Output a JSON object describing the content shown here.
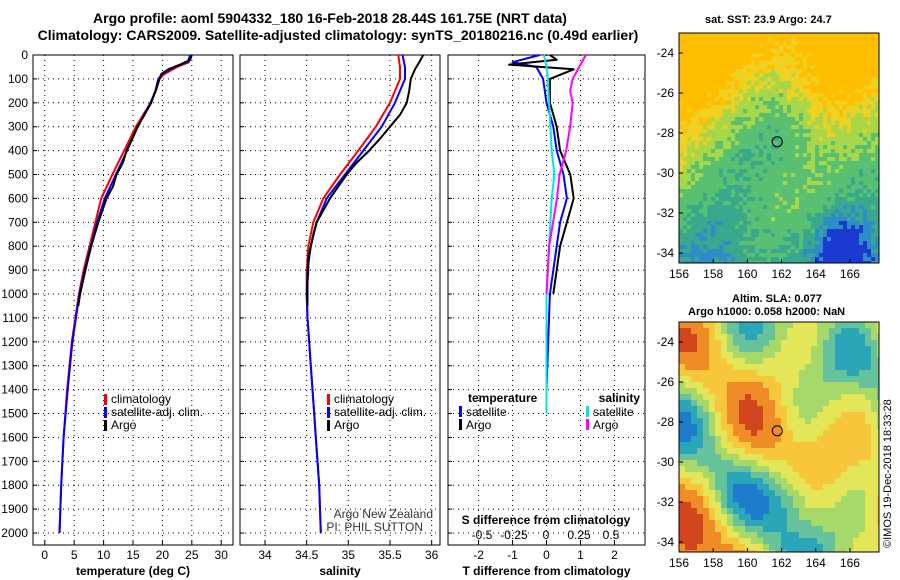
{
  "header": {
    "title_line1": "Argo profile: aoml 5904332_180 16-Feb-2018 28.44S 161.75E (NRT data)",
    "title_line2": "Climatology: CARS2009. Satellite-adjusted climatology: synTS_20180216.nc (0.49d earlier)"
  },
  "colors": {
    "climatology": "#ff0000",
    "satellite_adj": "#0000ff",
    "argo": "#000000",
    "sat_cyan": "#00e5e5",
    "argo_magenta": "#ff00ff"
  },
  "chart_data": [
    {
      "type": "line",
      "name": "temperature-profile",
      "xlabel": "temperature (deg C)",
      "ylabel": "",
      "xlim": [
        -2,
        32
      ],
      "ylim": [
        2050,
        0
      ],
      "xticks": [
        "0",
        "5",
        "10",
        "15",
        "20",
        "25",
        "30"
      ],
      "yticks": [
        "0",
        "100",
        "200",
        "300",
        "400",
        "500",
        "600",
        "700",
        "800",
        "900",
        "1000",
        "1100",
        "1200",
        "1300",
        "1400",
        "1500",
        "1600",
        "1700",
        "1800",
        "1900",
        "2000"
      ],
      "legend": [
        "climatology",
        "satellite-adj. clim.",
        "Argo"
      ],
      "series": [
        {
          "name": "climatology",
          "pressure": [
            0,
            30,
            50,
            80,
            100,
            150,
            200,
            300,
            400,
            500,
            600,
            700,
            800,
            900,
            1000,
            1200,
            1400,
            1600,
            1800,
            2000
          ],
          "values": [
            24.9,
            24.5,
            22.5,
            20.3,
            19.5,
            18.9,
            18.0,
            15.5,
            13.5,
            11.5,
            9.6,
            8.6,
            7.6,
            6.6,
            5.8,
            4.6,
            3.8,
            3.2,
            2.8,
            2.5
          ]
        },
        {
          "name": "satellite-adj. clim.",
          "pressure": [
            0,
            30,
            50,
            80,
            100,
            150,
            200,
            300,
            400,
            500,
            600,
            700,
            800,
            900,
            1000,
            1200,
            1400,
            1600,
            1800,
            2000
          ],
          "values": [
            24.7,
            24.3,
            22.0,
            20.0,
            19.3,
            18.8,
            18.0,
            15.8,
            14.0,
            12.1,
            10.2,
            8.9,
            7.8,
            6.8,
            5.9,
            4.7,
            3.9,
            3.2,
            2.8,
            2.5
          ]
        },
        {
          "name": "Argo",
          "pressure": [
            0,
            20,
            40,
            60,
            80,
            100,
            150,
            200,
            300,
            400,
            450,
            500,
            550,
            600,
            700,
            800,
            900,
            1000,
            1050
          ],
          "values": [
            25.0,
            24.7,
            23.0,
            21.0,
            19.8,
            19.5,
            18.8,
            18.1,
            15.8,
            13.9,
            13.3,
            12.2,
            11.6,
            10.5,
            9.1,
            7.9,
            6.9,
            6.0,
            5.7
          ]
        }
      ]
    },
    {
      "type": "line",
      "name": "salinity-profile",
      "xlabel": "salinity",
      "xlim": [
        33.7,
        36.1
      ],
      "ylim": [
        2050,
        0
      ],
      "xticks": [
        "34",
        "34.5",
        "35",
        "35.5",
        "36"
      ],
      "legend": [
        "climatology",
        "satellite-adj. clim.",
        "Argo"
      ],
      "credit_line1": "Argo New Zealand",
      "credit_line2": "PI: PHIL SUTTON",
      "series": [
        {
          "name": "climatology",
          "pressure": [
            0,
            50,
            100,
            200,
            300,
            400,
            500,
            600,
            700,
            800,
            900,
            1000,
            1100,
            1200,
            1300,
            1400,
            1500,
            1600,
            1700,
            1800,
            1900,
            2000
          ],
          "values": [
            35.6,
            35.62,
            35.62,
            35.5,
            35.33,
            35.12,
            34.9,
            34.7,
            34.58,
            34.52,
            34.5,
            34.5,
            34.51,
            34.53,
            34.55,
            34.57,
            34.59,
            34.61,
            34.63,
            34.65,
            34.66,
            34.67
          ]
        },
        {
          "name": "satellite-adj. clim.",
          "pressure": [
            0,
            50,
            100,
            200,
            300,
            400,
            500,
            600,
            700,
            800,
            900,
            1000,
            1100,
            1200,
            1300,
            1400,
            1500,
            1600,
            1700,
            1800,
            1900,
            2000
          ],
          "values": [
            35.65,
            35.68,
            35.68,
            35.56,
            35.4,
            35.18,
            34.96,
            34.74,
            34.62,
            34.55,
            34.51,
            34.5,
            34.51,
            34.53,
            34.55,
            34.57,
            34.59,
            34.61,
            34.63,
            34.65,
            34.66,
            34.67
          ]
        },
        {
          "name": "Argo",
          "pressure": [
            0,
            30,
            60,
            100,
            150,
            200,
            250,
            300,
            350,
            400,
            450,
            500,
            550,
            600,
            650,
            700,
            750,
            800,
            850,
            900,
            950,
            1000,
            1050
          ],
          "values": [
            35.9,
            35.85,
            35.8,
            35.75,
            35.73,
            35.7,
            35.62,
            35.5,
            35.38,
            35.25,
            35.1,
            34.98,
            34.88,
            34.78,
            34.7,
            34.62,
            34.58,
            34.55,
            34.52,
            34.52,
            34.51,
            34.51,
            34.51
          ]
        }
      ]
    },
    {
      "type": "line",
      "name": "difference-profile",
      "xlabel": "T difference from climatology",
      "xlabel2": "S difference from climatology",
      "xlim": [
        -2.9,
        2.9
      ],
      "ylim": [
        2050,
        0
      ],
      "xticks": [
        "-2",
        "-1",
        "0",
        "1",
        "2"
      ],
      "s_xticks": [
        "-0.5",
        "-0.25",
        "0",
        "0.25",
        "0.5"
      ],
      "legend_title_t": "temperature",
      "legend_title_s": "salinity",
      "legend_t": [
        "satellite",
        "Argo"
      ],
      "legend_s": [
        "satellite",
        "Argo"
      ],
      "series": [
        {
          "name": "T satellite",
          "pressure": [
            0,
            30,
            50,
            100,
            200,
            300,
            400,
            500,
            600,
            700,
            800,
            900,
            1000,
            1200,
            1400,
            1500
          ],
          "values": [
            -0.2,
            -1.0,
            -0.3,
            -0.1,
            0.0,
            0.2,
            0.3,
            0.5,
            0.6,
            0.4,
            0.3,
            0.2,
            0.1,
            0.05,
            0.0,
            0.0
          ]
        },
        {
          "name": "T Argo",
          "pressure": [
            0,
            20,
            40,
            60,
            100,
            200,
            300,
            400,
            500,
            600,
            700,
            800,
            900,
            1000
          ],
          "values": [
            0.1,
            0.3,
            -1.1,
            0.8,
            0.1,
            0.1,
            0.3,
            0.4,
            0.7,
            0.8,
            0.6,
            0.4,
            0.3,
            0.2
          ]
        },
        {
          "name": "S satellite",
          "pressure": [
            0,
            50,
            100,
            200,
            300,
            400,
            500,
            600,
            700,
            800,
            900,
            1000,
            1200,
            1400,
            1500
          ],
          "values": [
            -0.02,
            0.0,
            0.01,
            0.02,
            0.03,
            0.04,
            0.06,
            0.04,
            0.03,
            0.02,
            0.01,
            0.0,
            0.0,
            0.0,
            0.0
          ]
        },
        {
          "name": "S Argo",
          "pressure": [
            0,
            50,
            100,
            150,
            200,
            300,
            400,
            500,
            600,
            700,
            800,
            900,
            1000
          ],
          "values": [
            0.3,
            0.25,
            0.2,
            0.18,
            0.2,
            0.18,
            0.15,
            0.1,
            0.08,
            0.05,
            0.02,
            0.01,
            0.0
          ]
        }
      ]
    },
    {
      "type": "heatmap",
      "name": "sst-map",
      "title": "sat. SST: 23.9 Argo: 24.7",
      "xlim": [
        156,
        167.7
      ],
      "ylim": [
        -34.5,
        -23
      ],
      "xticks": [
        "156",
        "158",
        "160",
        "162",
        "164",
        "166"
      ],
      "yticks": [
        "-24",
        "-26",
        "-28",
        "-30",
        "-32",
        "-34"
      ],
      "argo_lon": 161.75,
      "argo_lat": -28.44
    },
    {
      "type": "heatmap",
      "name": "sla-map",
      "title_line1": "Altim. SLA: 0.077",
      "title_line2": "Argo h1000: 0.058 h2000: NaN",
      "xlim": [
        156,
        167.7
      ],
      "ylim": [
        -34.5,
        -23
      ],
      "xticks": [
        "156",
        "158",
        "160",
        "162",
        "164",
        "166"
      ],
      "yticks": [
        "-24",
        "-26",
        "-28",
        "-30",
        "-32",
        "-34"
      ],
      "argo_lon": 161.75,
      "argo_lat": -28.44
    }
  ],
  "footer": {
    "stamp": "©IMOS 19-Dec-2018 18:33:28"
  }
}
